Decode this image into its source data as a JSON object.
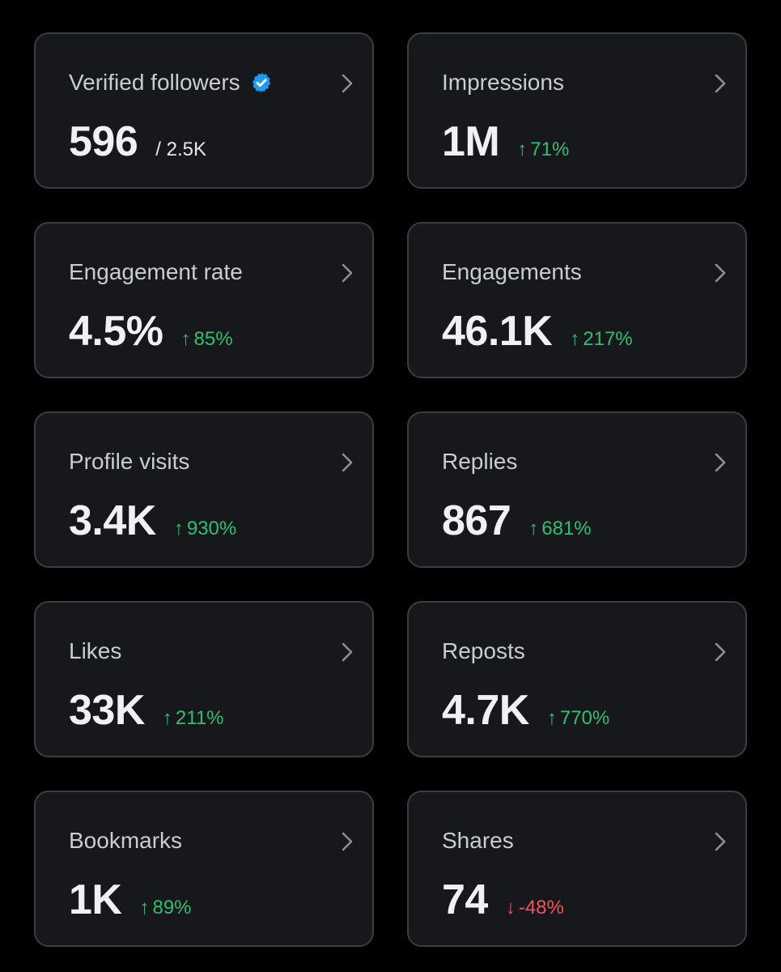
{
  "colors": {
    "background": "#000000",
    "card_background": "#16181c",
    "card_border": "#3a3d42",
    "positive": "#2fbf71",
    "negative": "#f4525d",
    "verified_badge": "#1d9bf0"
  },
  "cards": [
    {
      "label": "Verified followers",
      "value": "596",
      "secondary": "/ 2.5K",
      "verified_icon": "verified-badge-icon"
    },
    {
      "label": "Impressions",
      "value": "1M",
      "change": "71%",
      "direction": "up",
      "arrow": "↑"
    },
    {
      "label": "Engagement rate",
      "value": "4.5%",
      "change": "85%",
      "direction": "up",
      "arrow": "↑"
    },
    {
      "label": "Engagements",
      "value": "46.1K",
      "change": "217%",
      "direction": "up",
      "arrow": "↑"
    },
    {
      "label": "Profile visits",
      "value": "3.4K",
      "change": "930%",
      "direction": "up",
      "arrow": "↑"
    },
    {
      "label": "Replies",
      "value": "867",
      "change": "681%",
      "direction": "up",
      "arrow": "↑"
    },
    {
      "label": "Likes",
      "value": "33K",
      "change": "211%",
      "direction": "up",
      "arrow": "↑"
    },
    {
      "label": "Reposts",
      "value": "4.7K",
      "change": "770%",
      "direction": "up",
      "arrow": "↑"
    },
    {
      "label": "Bookmarks",
      "value": "1K",
      "change": "89%",
      "direction": "up",
      "arrow": "↑"
    },
    {
      "label": "Shares",
      "value": "74",
      "change": "-48%",
      "direction": "down",
      "arrow": "↓"
    }
  ]
}
